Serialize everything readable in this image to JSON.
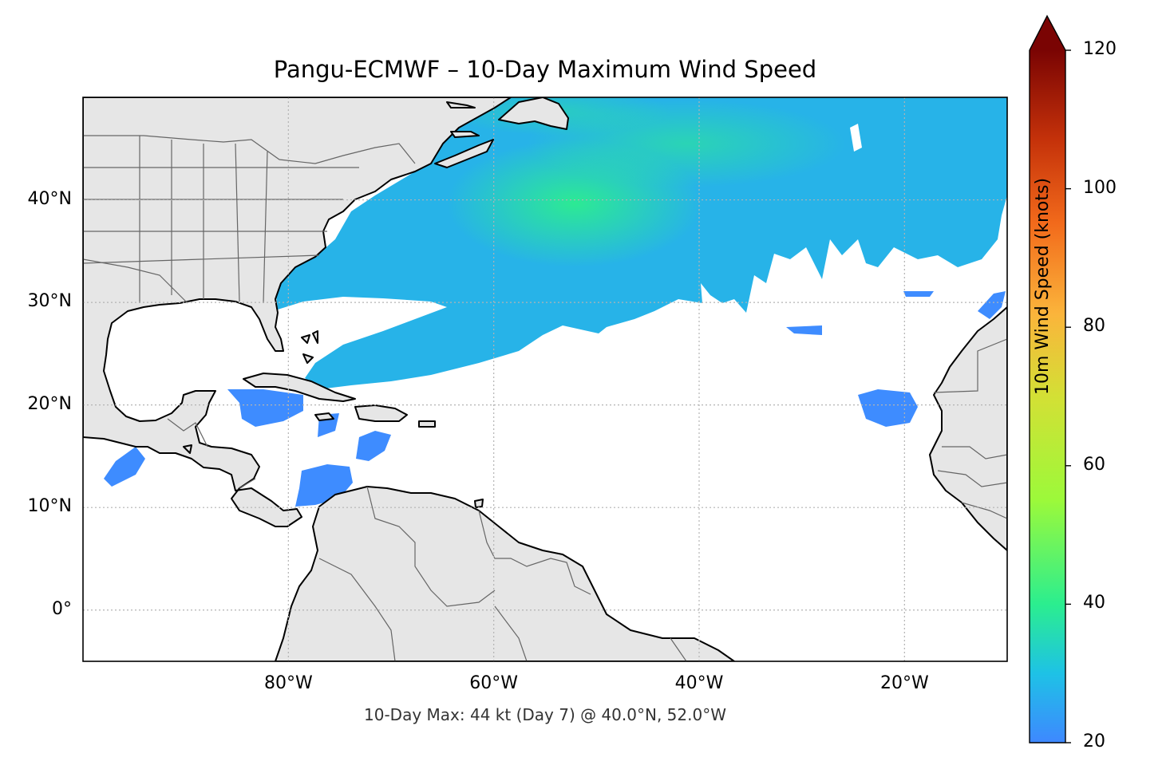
{
  "title": "Pangu-ECMWF – 10-Day Maximum Wind Speed",
  "subtitle": "10-Day Max: 44 kt (Day 7) @ 40.0°N, 52.0°W",
  "map": {
    "projection": "PlateCarree",
    "lon_range": [
      -100,
      -10
    ],
    "lat_range": [
      -5,
      50
    ],
    "gridlines": true,
    "land_color": "#e6e6e6",
    "coastline_color": "#000000",
    "border_color": "#666666",
    "lat_ticks": [
      {
        "value": 40,
        "label": "40°N"
      },
      {
        "value": 30,
        "label": "30°N"
      },
      {
        "value": 20,
        "label": "20°N"
      },
      {
        "value": 10,
        "label": "10°N"
      },
      {
        "value": 0,
        "label": "0°"
      }
    ],
    "lon_ticks": [
      {
        "value": -80,
        "label": "80°W"
      },
      {
        "value": -60,
        "label": "60°W"
      },
      {
        "value": -40,
        "label": "40°W"
      },
      {
        "value": -20,
        "label": "20°W"
      }
    ]
  },
  "colorbar": {
    "label": "10m Wind Speed (knots)",
    "min": 20,
    "max": 120,
    "extend": "max",
    "colormap": "turbo",
    "ticks": [
      {
        "value": 120,
        "label": "120"
      },
      {
        "value": 100,
        "label": "100"
      },
      {
        "value": 80,
        "label": "80"
      },
      {
        "value": 60,
        "label": "60"
      },
      {
        "value": 40,
        "label": "40"
      },
      {
        "value": 20,
        "label": "20"
      }
    ],
    "stops": [
      {
        "value": 0.0,
        "color": "#3e88ff"
      },
      {
        "value": 0.1,
        "color": "#1ec2e6"
      },
      {
        "value": 0.2,
        "color": "#2bee8f"
      },
      {
        "value": 0.35,
        "color": "#9cf93a"
      },
      {
        "value": 0.5,
        "color": "#d3e035"
      },
      {
        "value": 0.62,
        "color": "#fbb43b"
      },
      {
        "value": 0.75,
        "color": "#f26a1b"
      },
      {
        "value": 0.87,
        "color": "#c5320a"
      },
      {
        "value": 1.0,
        "color": "#7a0403"
      }
    ]
  },
  "max_point": {
    "value_kt": 44,
    "day": 7,
    "lat": 40.0,
    "lon": -52.0
  }
}
